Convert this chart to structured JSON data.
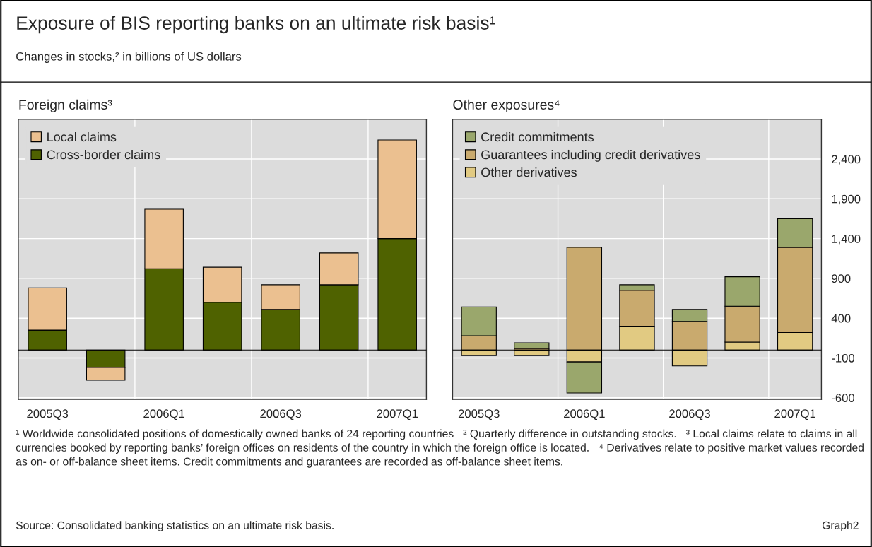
{
  "chart_data": [
    {
      "type": "other",
      "title": "Exposure of BIS reporting banks on an ultimate risk basis¹",
      "subtitle": "Changes in stocks,² in billions of US dollars",
      "annotations": [
        "¹ Worldwide consolidated positions of domestically owned banks of 24 reporting countries   ² Quarterly difference in outstanding stocks.   ³ Local claims relate to claims in all currencies booked by reporting banks’ foreign offices on residents of the country in which the foreign office is located.   ⁴ Derivatives relate to positive market values recorded as on- or off-balance sheet items. Credit commitments and guarantees are recorded as off-balance sheet items.",
        "Source: Consolidated banking statistics on an ultimate risk basis.",
        "Graph2"
      ]
    },
    {
      "type": "bar",
      "title": "Foreign claims³",
      "stacked": true,
      "categories": [
        "2005Q3",
        null,
        "2006Q1",
        null,
        "2006Q3",
        null,
        "2007Q1"
      ],
      "series": [
        {
          "name": "Cross-border claims",
          "color": "#4f6200",
          "values": [
            250,
            -220,
            1020,
            600,
            510,
            820,
            1400
          ]
        },
        {
          "name": "Local claims",
          "color": "#ebc090",
          "values": [
            530,
            -160,
            750,
            440,
            310,
            400,
            1240
          ]
        }
      ],
      "ylim": [
        -620,
        2900
      ],
      "yticks": [
        -600,
        -100,
        400,
        900,
        1400,
        1900,
        2400
      ],
      "tick_labels": "x",
      "grid": true,
      "legend": "top left"
    },
    {
      "type": "bar",
      "title": "Other exposures⁴",
      "stacked": true,
      "categories": [
        "2005Q3",
        null,
        "2006Q1",
        null,
        "2006Q3",
        null,
        "2007Q1"
      ],
      "series": [
        {
          "name": "Other derivatives",
          "color": "#e1ca82",
          "values": [
            -70,
            -70,
            -150,
            300,
            -200,
            100,
            220
          ]
        },
        {
          "name": "Guarantees including credit derivatives",
          "color": "#c9aa6e",
          "values": [
            180,
            20,
            1290,
            450,
            360,
            450,
            1070
          ]
        },
        {
          "name": "Credit commitments",
          "color": "#9aa76c",
          "values": [
            360,
            70,
            -390,
            70,
            150,
            370,
            360
          ]
        }
      ],
      "ylim": [
        -620,
        2900
      ],
      "yticks": [
        {
          "value": -600,
          "label": "-600"
        },
        {
          "value": -100,
          "label": "-100"
        },
        400,
        900,
        {
          "value": 1400,
          "label": "1,400"
        },
        {
          "value": 1900,
          "label": "1,900"
        },
        {
          "value": 2400,
          "label": "2,400"
        }
      ],
      "grid": true,
      "legend": "top left"
    }
  ]
}
